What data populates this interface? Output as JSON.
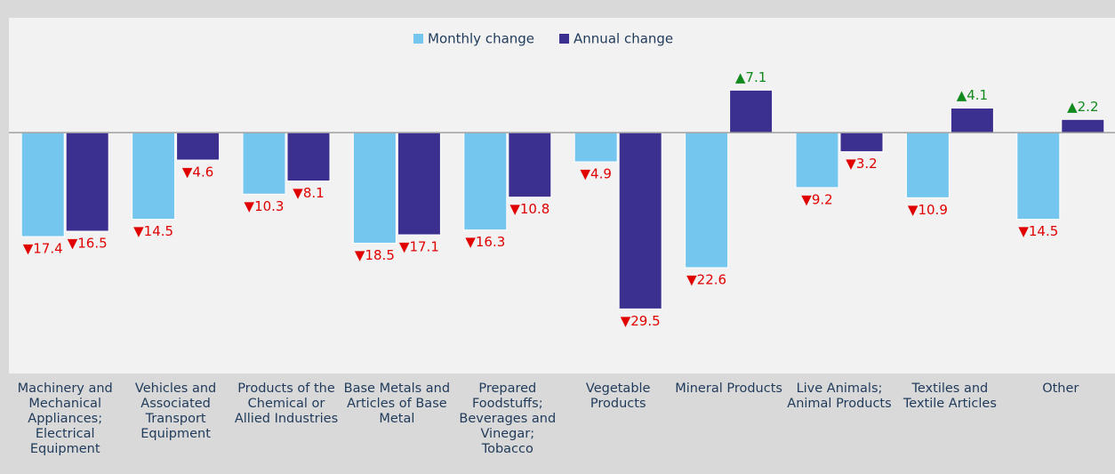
{
  "chart_data": {
    "type": "bar",
    "categories": [
      "Machinery and Mechanical Appliances; Electrical Equipment",
      "Vehicles and Associated Transport Equipment",
      "Products of the Chemical or Allied Industries",
      "Base Metals and Articles of Base Metal",
      "Prepared Foodstuffs; Beverages and Vinegar; Tobacco",
      "Vegetable Products",
      "Mineral Products",
      "Live Animals; Animal Products",
      "Textiles and Textile Articles",
      "Other"
    ],
    "series": [
      {
        "name": "Monthly change",
        "color": "#74c6ef",
        "values": [
          -17.4,
          -14.5,
          -10.3,
          -18.5,
          -16.3,
          -4.9,
          -22.6,
          -9.2,
          -10.9,
          -14.5
        ],
        "value_labels": [
          "▼17.4",
          "▼14.5",
          "▼10.3",
          "▼18.5",
          "▼16.3",
          "▼4.9",
          "▼22.6",
          "▼9.2",
          "▼10.9",
          "▼14.5"
        ]
      },
      {
        "name": "Annual change",
        "color": "#3b2f8f",
        "values": [
          -16.5,
          -4.6,
          -8.1,
          -17.1,
          -10.8,
          -29.5,
          7.1,
          -3.2,
          4.1,
          2.2
        ],
        "value_labels": [
          "▼16.5",
          "▼4.6",
          "▼8.1",
          "▼17.1",
          "▼10.8",
          "▼29.5",
          "▲7.1",
          "▼3.2",
          "▲4.1",
          "▲2.2"
        ]
      }
    ],
    "ylim": [
      -40.3,
      19.2
    ],
    "legend": "top"
  }
}
